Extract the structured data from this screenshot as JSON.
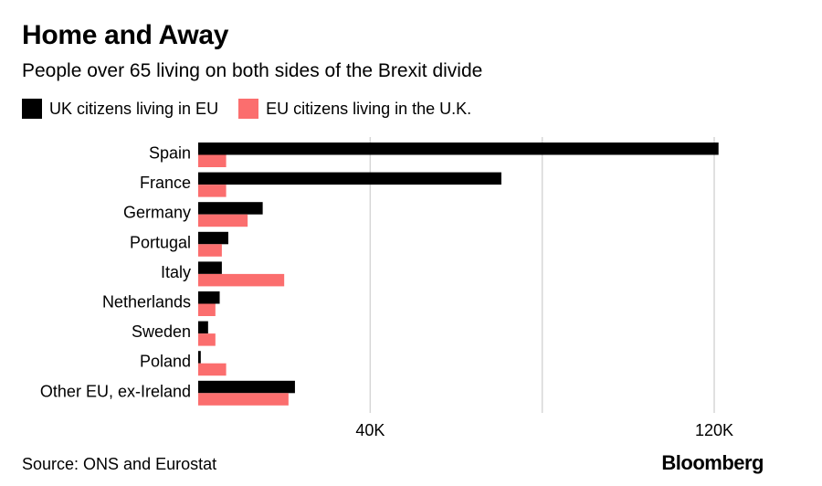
{
  "header": {
    "title": "Home and Away",
    "subtitle": "People over 65 living on both sides of the Brexit divide"
  },
  "footer": {
    "source": "Source: ONS and Eurostat",
    "brand": "Bloomberg"
  },
  "colors": {
    "uk_in_eu": "#000000",
    "eu_in_uk": "#fb6e6e",
    "grid": "#d6d6d6"
  },
  "chart_data": {
    "type": "bar",
    "orientation": "horizontal",
    "title": "Home and Away",
    "subtitle": "People over 65 living on both sides of the Brexit divide",
    "categories": [
      "Spain",
      "France",
      "Germany",
      "Portugal",
      "Italy",
      "Netherlands",
      "Sweden",
      "Poland",
      "Other EU, ex-Ireland"
    ],
    "series": [
      {
        "name": "UK citizens living in EU",
        "color": "#000000",
        "values": [
          121000,
          70500,
          15000,
          7000,
          5500,
          5000,
          2300,
          600,
          22500
        ]
      },
      {
        "name": "EU citizens living in the U.K.",
        "color": "#fb6e6e",
        "values": [
          6500,
          6500,
          11500,
          5500,
          20000,
          4000,
          4000,
          6500,
          21000
        ]
      }
    ],
    "xlim": [
      0,
      140000
    ],
    "xticks": [
      40000,
      120000
    ],
    "xtick_labels": [
      "40K",
      "120K"
    ],
    "gridlines": [
      40000,
      80000,
      120000
    ],
    "grid": true,
    "legend_position": "top-left"
  }
}
